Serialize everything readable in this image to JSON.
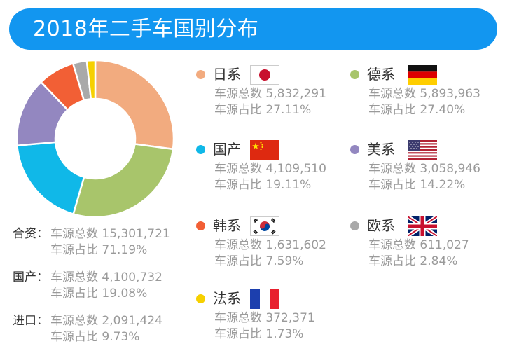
{
  "title": "2018年二手车国别分布",
  "stat_labels": {
    "total": "车源总数",
    "share": "车源占比"
  },
  "chart_data": {
    "type": "pie",
    "title": "2018年二手车国别分布",
    "categories": [
      "日系",
      "德系",
      "国产",
      "美系",
      "韩系",
      "欧系",
      "法系"
    ],
    "values": [
      5832291,
      5893963,
      4109510,
      3058946,
      1631602,
      611027,
      372371
    ],
    "shares": [
      "27.11%",
      "27.40%",
      "19.11%",
      "14.22%",
      "7.59%",
      "2.84%",
      "1.73%"
    ],
    "colors": [
      "#f2ab7f",
      "#a8c56b",
      "#10b8e8",
      "#9387c0",
      "#f25f35",
      "#a9a9a9",
      "#f6d000"
    ]
  },
  "legend": [
    {
      "name": "日系",
      "total": "5,832,291",
      "share": "27.11%",
      "color": "#f2ab7f",
      "icon": "japan-flag-icon"
    },
    {
      "name": "德系",
      "total": "5,893,963",
      "share": "27.40%",
      "color": "#a8c56b",
      "icon": "germany-flag-icon"
    },
    {
      "name": "国产",
      "total": "4,109,510",
      "share": "19.11%",
      "color": "#10b8e8",
      "icon": "china-flag-icon"
    },
    {
      "name": "美系",
      "total": "3,058,946",
      "share": "14.22%",
      "color": "#9387c0",
      "icon": "usa-flag-icon"
    },
    {
      "name": "韩系",
      "total": "1,631,602",
      "share": "7.59%",
      "color": "#f25f35",
      "icon": "korea-flag-icon"
    },
    {
      "name": "欧系",
      "total": "611,027",
      "share": "2.84%",
      "color": "#a9a9a9",
      "icon": "uk-flag-icon"
    },
    {
      "name": "法系",
      "total": "372,371",
      "share": "1.73%",
      "color": "#f6d000",
      "icon": "france-flag-icon"
    }
  ],
  "summary": [
    {
      "label": "合资：",
      "total": "15,301,721",
      "share": "71.19%"
    },
    {
      "label": "国产：",
      "total": "4,100,732",
      "share": "19.08%"
    },
    {
      "label": "进口：",
      "total": "2,091,424",
      "share": "9.73%"
    }
  ]
}
